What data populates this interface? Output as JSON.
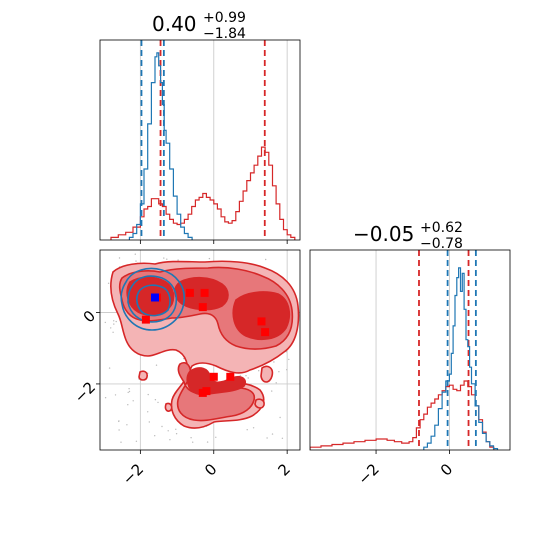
{
  "colors": {
    "red": "#d62728",
    "red_fill_1": "#e7777a",
    "red_fill_2": "#f4b4b5",
    "blue": "#1f77b4",
    "marker_red": "#ff0000",
    "marker_blue": "#0000ff",
    "grid": "#cccccc"
  },
  "chart_data": [
    {
      "type": "histogram",
      "panel": "top-left",
      "title_main": "0.40",
      "title_sup": "+0.99",
      "title_sub": "−1.84",
      "xlim": [
        -3.1,
        2.35
      ],
      "grid": true,
      "series": [
        {
          "name": "",
          "color": "#d62728",
          "bins": [
            [
              -2.8,
              0.02
            ],
            [
              -2.6,
              0.04
            ],
            [
              -2.4,
              0.06
            ],
            [
              -2.2,
              0.1
            ],
            [
              -2.0,
              0.18
            ],
            [
              -1.9,
              0.24
            ],
            [
              -1.8,
              0.26
            ],
            [
              -1.7,
              0.32
            ],
            [
              -1.6,
              0.32
            ],
            [
              -1.5,
              0.28
            ],
            [
              -1.4,
              0.26
            ],
            [
              -1.3,
              0.2
            ],
            [
              -1.2,
              0.16
            ],
            [
              -1.1,
              0.13
            ],
            [
              -1.0,
              0.12
            ],
            [
              -0.9,
              0.13
            ],
            [
              -0.8,
              0.16
            ],
            [
              -0.7,
              0.2
            ],
            [
              -0.6,
              0.26
            ],
            [
              -0.5,
              0.31
            ],
            [
              -0.4,
              0.33
            ],
            [
              -0.3,
              0.36
            ],
            [
              -0.2,
              0.33
            ],
            [
              -0.1,
              0.31
            ],
            [
              0.0,
              0.28
            ],
            [
              0.1,
              0.24
            ],
            [
              0.2,
              0.18
            ],
            [
              0.3,
              0.14
            ],
            [
              0.4,
              0.13
            ],
            [
              0.5,
              0.15
            ],
            [
              0.6,
              0.22
            ],
            [
              0.7,
              0.3
            ],
            [
              0.8,
              0.38
            ],
            [
              0.9,
              0.46
            ],
            [
              1.0,
              0.52
            ],
            [
              1.1,
              0.58
            ],
            [
              1.2,
              0.65
            ],
            [
              1.3,
              0.72
            ],
            [
              1.4,
              0.68
            ],
            [
              1.5,
              0.58
            ],
            [
              1.6,
              0.42
            ],
            [
              1.7,
              0.28
            ],
            [
              1.8,
              0.16
            ],
            [
              1.9,
              0.08
            ],
            [
              2.0,
              0.04
            ],
            [
              2.1,
              0.02
            ]
          ],
          "lines": [
            -1.45,
            1.39
          ]
        },
        {
          "name": "",
          "color": "#1f77b4",
          "bins": [
            [
              -2.3,
              0.02
            ],
            [
              -2.2,
              0.05
            ],
            [
              -2.1,
              0.12
            ],
            [
              -2.0,
              0.28
            ],
            [
              -1.9,
              0.55
            ],
            [
              -1.8,
              0.9
            ],
            [
              -1.7,
              1.22
            ],
            [
              -1.6,
              1.42
            ],
            [
              -1.55,
              1.45
            ],
            [
              -1.5,
              1.35
            ],
            [
              -1.45,
              1.22
            ],
            [
              -1.4,
              1.05
            ],
            [
              -1.35,
              0.85
            ],
            [
              -1.3,
              0.75
            ],
            [
              -1.2,
              0.55
            ],
            [
              -1.1,
              0.34
            ],
            [
              -1.0,
              0.2
            ],
            [
              -0.9,
              0.1
            ],
            [
              -0.8,
              0.05
            ],
            [
              -0.7,
              0.02
            ]
          ],
          "lines": [
            -1.97,
            -1.36
          ]
        }
      ],
      "ylim": [
        0,
        1.55
      ]
    },
    {
      "type": "contour",
      "panel": "bottom-left",
      "xlim": [
        -3.1,
        2.35
      ],
      "ylim": [
        -3.85,
        1.75
      ],
      "xticks": [
        "−2",
        "0",
        "2"
      ],
      "yticks": [
        "0",
        "−2"
      ],
      "grid": true,
      "red_points": [
        [
          -1.55,
          0.42
        ],
        [
          -0.65,
          0.55
        ],
        [
          -0.25,
          0.55
        ],
        [
          -0.3,
          0.15
        ],
        [
          -1.85,
          -0.2
        ],
        [
          1.3,
          -0.25
        ],
        [
          1.4,
          -0.55
        ],
        [
          0.0,
          -1.8
        ],
        [
          0.45,
          -1.8
        ],
        [
          -0.2,
          -2.2
        ],
        [
          -0.3,
          -2.25
        ]
      ],
      "blue_points": [
        [
          -1.6,
          0.42
        ]
      ]
    },
    {
      "type": "histogram",
      "panel": "bottom-right",
      "title_main": "−0.05",
      "title_sup": "+0.62",
      "title_sub": "−0.78",
      "xlim": [
        -3.8,
        1.65
      ],
      "xticks": [
        "−2",
        "0"
      ],
      "grid": true,
      "series": [
        {
          "name": "",
          "color": "#d62728",
          "bins": [
            [
              -3.8,
              0.02
            ],
            [
              -3.5,
              0.03
            ],
            [
              -3.2,
              0.04
            ],
            [
              -2.9,
              0.05
            ],
            [
              -2.6,
              0.06
            ],
            [
              -2.3,
              0.07
            ],
            [
              -2.0,
              0.08
            ],
            [
              -1.7,
              0.07
            ],
            [
              -1.5,
              0.06
            ],
            [
              -1.3,
              0.05
            ],
            [
              -1.1,
              0.06
            ],
            [
              -1.0,
              0.09
            ],
            [
              -0.9,
              0.16
            ],
            [
              -0.8,
              0.22
            ],
            [
              -0.7,
              0.26
            ],
            [
              -0.6,
              0.31
            ],
            [
              -0.5,
              0.34
            ],
            [
              -0.4,
              0.37
            ],
            [
              -0.3,
              0.4
            ],
            [
              -0.2,
              0.43
            ],
            [
              -0.1,
              0.46
            ],
            [
              0.0,
              0.47
            ],
            [
              0.1,
              0.44
            ],
            [
              0.2,
              0.43
            ],
            [
              0.3,
              0.47
            ],
            [
              0.4,
              0.5
            ],
            [
              0.5,
              0.46
            ],
            [
              0.6,
              0.4
            ],
            [
              0.7,
              0.32
            ],
            [
              0.8,
              0.22
            ],
            [
              0.9,
              0.13
            ],
            [
              1.0,
              0.06
            ],
            [
              1.1,
              0.02
            ]
          ],
          "lines": [
            -0.83,
            0.52
          ]
        },
        {
          "name": "",
          "color": "#1f77b4",
          "bins": [
            [
              -0.7,
              0.02
            ],
            [
              -0.6,
              0.05
            ],
            [
              -0.5,
              0.1
            ],
            [
              -0.4,
              0.18
            ],
            [
              -0.3,
              0.3
            ],
            [
              -0.2,
              0.42
            ],
            [
              -0.1,
              0.5
            ],
            [
              0.0,
              0.55
            ],
            [
              0.05,
              0.7
            ],
            [
              0.1,
              0.9
            ],
            [
              0.15,
              1.12
            ],
            [
              0.2,
              1.25
            ],
            [
              0.25,
              1.32
            ],
            [
              0.3,
              1.15
            ],
            [
              0.35,
              1.28
            ],
            [
              0.4,
              1.02
            ],
            [
              0.45,
              0.8
            ],
            [
              0.5,
              0.75
            ],
            [
              0.55,
              0.6
            ],
            [
              0.6,
              0.48
            ],
            [
              0.7,
              0.32
            ],
            [
              0.8,
              0.2
            ],
            [
              0.9,
              0.12
            ],
            [
              1.0,
              0.06
            ],
            [
              1.1,
              0.03
            ],
            [
              1.2,
              0.01
            ]
          ],
          "lines": [
            -0.05,
            0.72
          ]
        }
      ],
      "ylim": [
        0,
        1.45
      ]
    }
  ]
}
